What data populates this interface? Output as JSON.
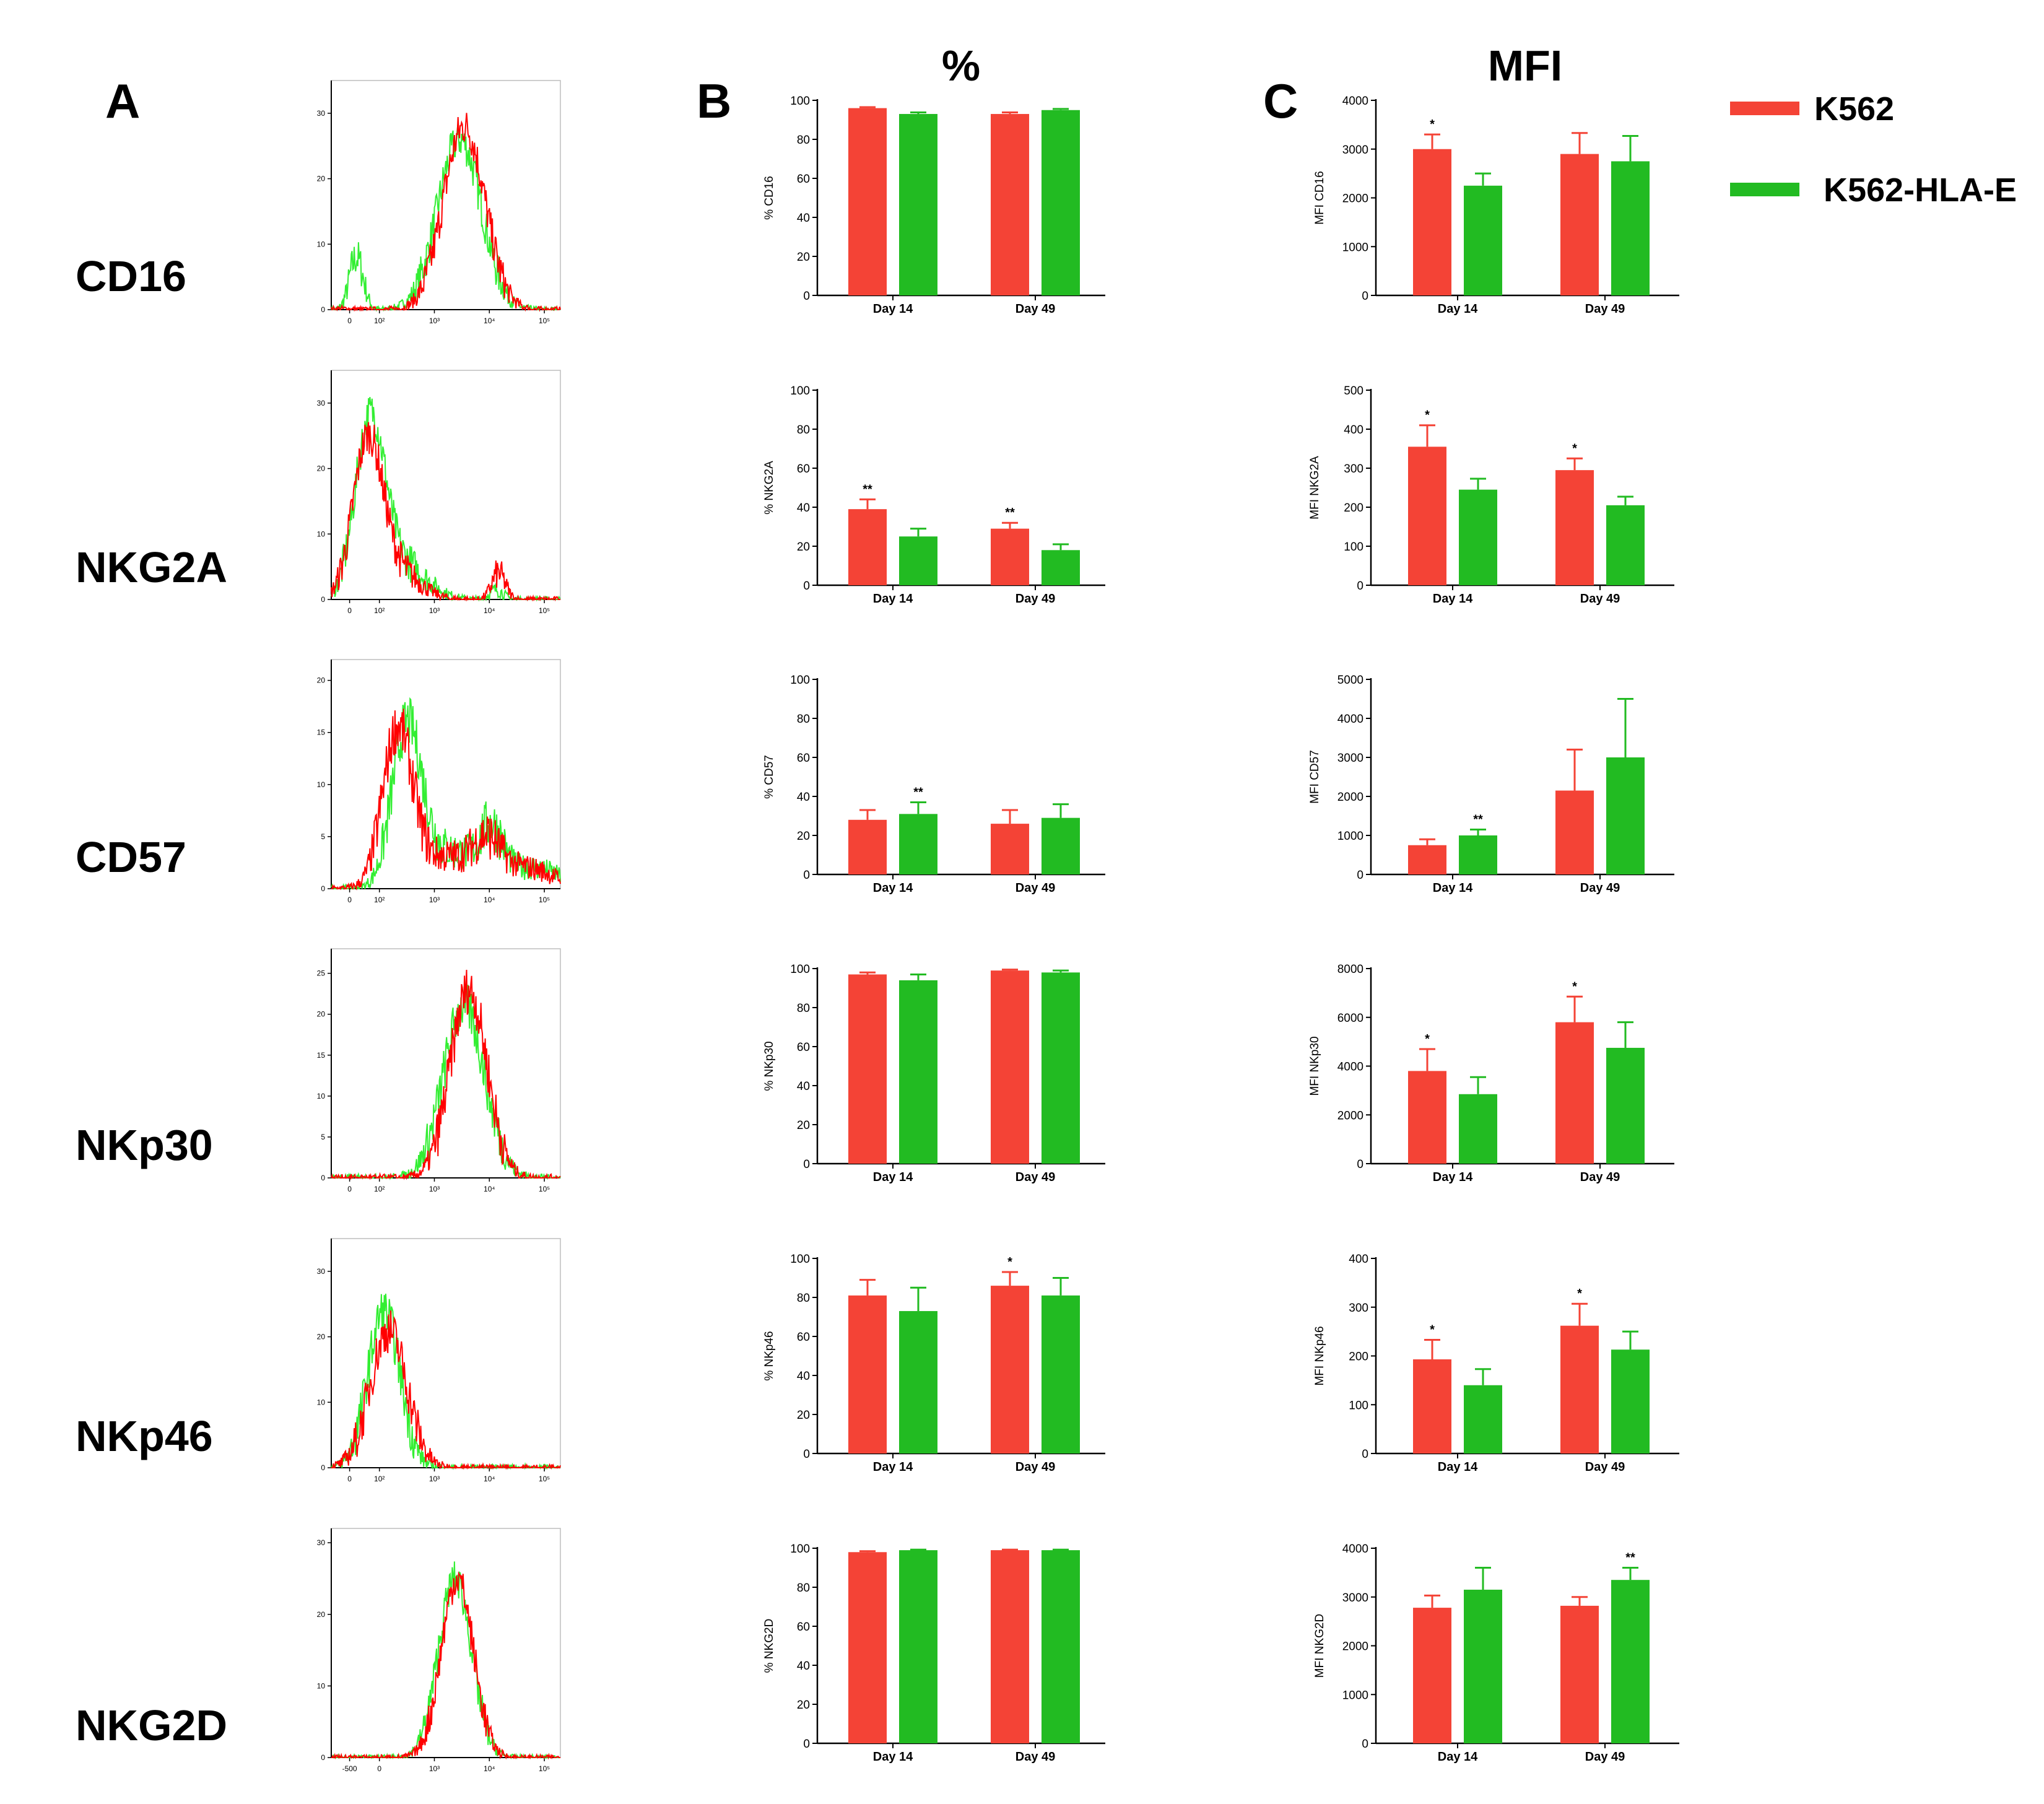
{
  "panel_letters": {
    "a": "A",
    "b": "B",
    "c": "C"
  },
  "column_titles": {
    "percent": "%",
    "mfi": "MFI"
  },
  "markers": [
    "CD16",
    "NKG2A",
    "CD57",
    "NKp30",
    "NKp46",
    "NKG2D"
  ],
  "legend": [
    {
      "label": "K562",
      "color": "#f44336"
    },
    {
      "label": "K562-HLA-E",
      "color": "#22bb22"
    }
  ],
  "colors": {
    "k562": "#f44336",
    "k562_hla_e": "#22bb22",
    "hist_red": "#ff0000",
    "hist_green": "#33ee33"
  },
  "chart_data": [
    {
      "id": "A-CD16",
      "type": "line",
      "ylim": [
        0,
        35
      ],
      "yticks": [
        "0",
        "10",
        "20",
        "30"
      ],
      "xticks": [
        "0",
        "10²",
        "10³",
        "10⁴",
        "10⁵"
      ],
      "series": [
        "red",
        "green"
      ]
    },
    {
      "id": "A-NKG2A",
      "type": "line",
      "ylim": [
        0,
        35
      ],
      "yticks": [
        "0",
        "10",
        "20",
        "30"
      ],
      "xticks": [
        "0",
        "10²",
        "10³",
        "10⁴",
        "10⁵"
      ],
      "series": [
        "red",
        "green"
      ]
    },
    {
      "id": "A-CD57",
      "type": "line",
      "ylim": [
        0,
        22
      ],
      "yticks": [
        "0",
        "5",
        "10",
        "15",
        "20"
      ],
      "xticks": [
        "0",
        "10²",
        "10³",
        "10⁴",
        "10⁵"
      ],
      "series": [
        "red",
        "green"
      ]
    },
    {
      "id": "A-NKp30",
      "type": "line",
      "ylim": [
        0,
        28
      ],
      "yticks": [
        "0",
        "5",
        "10",
        "15",
        "20",
        "25"
      ],
      "xticks": [
        "0",
        "10²",
        "10³",
        "10⁴",
        "10⁵"
      ],
      "series": [
        "red",
        "green"
      ]
    },
    {
      "id": "A-NKp46",
      "type": "line",
      "ylim": [
        0,
        35
      ],
      "yticks": [
        "0",
        "10",
        "20",
        "30"
      ],
      "xticks": [
        "0",
        "10²",
        "10³",
        "10⁴",
        "10⁵"
      ],
      "series": [
        "red",
        "green"
      ]
    },
    {
      "id": "A-NKG2D",
      "type": "line",
      "ylim": [
        0,
        32
      ],
      "yticks": [
        "0",
        "10",
        "20",
        "30"
      ],
      "xticks": [
        "-500",
        "0",
        "10³",
        "10⁴",
        "10⁵"
      ],
      "series": [
        "red",
        "green"
      ]
    },
    {
      "id": "B-CD16",
      "type": "bar",
      "ylabel": "% CD16",
      "ylim": [
        0,
        100
      ],
      "yticks": [
        0,
        20,
        40,
        60,
        80,
        100
      ],
      "categories": [
        "Day 14",
        "Day 49"
      ],
      "series": [
        {
          "name": "K562",
          "values": [
            96,
            93
          ],
          "errors": [
            0.5,
            0.8
          ],
          "sig": [
            "",
            ""
          ]
        },
        {
          "name": "K562-HLA-E",
          "values": [
            93,
            95
          ],
          "errors": [
            0.8,
            0.6
          ],
          "sig": [
            "",
            ""
          ]
        }
      ]
    },
    {
      "id": "B-NKG2A",
      "type": "bar",
      "ylabel": "% NKG2A",
      "ylim": [
        0,
        100
      ],
      "yticks": [
        0,
        20,
        40,
        60,
        80,
        100
      ],
      "categories": [
        "Day 14",
        "Day 49"
      ],
      "series": [
        {
          "name": "K562",
          "values": [
            39,
            29
          ],
          "errors": [
            5,
            3
          ],
          "sig": [
            "**",
            "**"
          ]
        },
        {
          "name": "K562-HLA-E",
          "values": [
            25,
            18
          ],
          "errors": [
            4,
            3
          ],
          "sig": [
            "",
            ""
          ]
        }
      ]
    },
    {
      "id": "B-CD57",
      "type": "bar",
      "ylabel": "% CD57",
      "ylim": [
        0,
        100
      ],
      "yticks": [
        0,
        20,
        40,
        60,
        80,
        100
      ],
      "categories": [
        "Day 14",
        "Day 49"
      ],
      "series": [
        {
          "name": "K562",
          "values": [
            28,
            26
          ],
          "errors": [
            5,
            7
          ],
          "sig": [
            "",
            ""
          ]
        },
        {
          "name": "K562-HLA-E",
          "values": [
            31,
            29
          ],
          "errors": [
            6,
            7
          ],
          "sig": [
            "**",
            ""
          ]
        }
      ]
    },
    {
      "id": "B-NKp30",
      "type": "bar",
      "ylabel": "% NKp30",
      "ylim": [
        0,
        100
      ],
      "yticks": [
        0,
        20,
        40,
        60,
        80,
        100
      ],
      "categories": [
        "Day 14",
        "Day 49"
      ],
      "series": [
        {
          "name": "K562",
          "values": [
            97,
            99
          ],
          "errors": [
            1,
            0.5
          ],
          "sig": [
            "",
            ""
          ]
        },
        {
          "name": "K562-HLA-E",
          "values": [
            94,
            98
          ],
          "errors": [
            3,
            1
          ],
          "sig": [
            "",
            ""
          ]
        }
      ]
    },
    {
      "id": "B-NKp46",
      "type": "bar",
      "ylabel": "% NKp46",
      "ylim": [
        0,
        100
      ],
      "yticks": [
        0,
        20,
        40,
        60,
        80,
        100
      ],
      "categories": [
        "Day 14",
        "Day 49"
      ],
      "series": [
        {
          "name": "K562",
          "values": [
            81,
            86
          ],
          "errors": [
            8,
            7
          ],
          "sig": [
            "",
            "*"
          ]
        },
        {
          "name": "K562-HLA-E",
          "values": [
            73,
            81
          ],
          "errors": [
            12,
            9
          ],
          "sig": [
            "",
            ""
          ]
        }
      ]
    },
    {
      "id": "B-NKG2D",
      "type": "bar",
      "ylabel": "% NKG2D",
      "ylim": [
        0,
        100
      ],
      "yticks": [
        0,
        20,
        40,
        60,
        80,
        100
      ],
      "categories": [
        "Day 14",
        "Day 49"
      ],
      "series": [
        {
          "name": "K562",
          "values": [
            98,
            99
          ],
          "errors": [
            0.5,
            0.3
          ],
          "sig": [
            "",
            ""
          ]
        },
        {
          "name": "K562-HLA-E",
          "values": [
            99,
            99
          ],
          "errors": [
            0.3,
            0.3
          ],
          "sig": [
            "",
            ""
          ]
        }
      ]
    },
    {
      "id": "C-CD16",
      "type": "bar",
      "ylabel": "MFI CD16",
      "ylim": [
        0,
        4000
      ],
      "yticks": [
        0,
        1000,
        2000,
        3000,
        4000
      ],
      "categories": [
        "Day 14",
        "Day 49"
      ],
      "series": [
        {
          "name": "K562",
          "values": [
            3000,
            2900
          ],
          "errors": [
            300,
            430
          ],
          "sig": [
            "*",
            ""
          ]
        },
        {
          "name": "K562-HLA-E",
          "values": [
            2250,
            2750
          ],
          "errors": [
            250,
            520
          ],
          "sig": [
            "",
            ""
          ]
        }
      ]
    },
    {
      "id": "C-NKG2A",
      "type": "bar",
      "ylabel": "MFI NKG2A",
      "ylim": [
        0,
        500
      ],
      "yticks": [
        0,
        100,
        200,
        300,
        400,
        500
      ],
      "categories": [
        "Day 14",
        "Day 49"
      ],
      "series": [
        {
          "name": "K562",
          "values": [
            355,
            295
          ],
          "errors": [
            55,
            30
          ],
          "sig": [
            "*",
            "*"
          ]
        },
        {
          "name": "K562-HLA-E",
          "values": [
            245,
            205
          ],
          "errors": [
            28,
            22
          ],
          "sig": [
            "",
            ""
          ]
        }
      ]
    },
    {
      "id": "C-CD57",
      "type": "bar",
      "ylabel": "MFI CD57",
      "ylim": [
        0,
        5000
      ],
      "yticks": [
        0,
        1000,
        2000,
        3000,
        4000,
        5000
      ],
      "categories": [
        "Day 14",
        "Day 49"
      ],
      "series": [
        {
          "name": "K562",
          "values": [
            750,
            2150
          ],
          "errors": [
            150,
            1050
          ],
          "sig": [
            "",
            ""
          ]
        },
        {
          "name": "K562-HLA-E",
          "values": [
            1000,
            3000
          ],
          "errors": [
            150,
            1500
          ],
          "sig": [
            "**",
            ""
          ]
        }
      ]
    },
    {
      "id": "C-NKp30",
      "type": "bar",
      "ylabel": "MFI NKp30",
      "ylim": [
        0,
        8000
      ],
      "yticks": [
        0,
        2000,
        4000,
        6000,
        8000
      ],
      "categories": [
        "Day 14",
        "Day 49"
      ],
      "series": [
        {
          "name": "K562",
          "values": [
            3800,
            5800
          ],
          "errors": [
            900,
            1050
          ],
          "sig": [
            "*",
            "*"
          ]
        },
        {
          "name": "K562-HLA-E",
          "values": [
            2850,
            4750
          ],
          "errors": [
            700,
            1050
          ],
          "sig": [
            "",
            ""
          ]
        }
      ]
    },
    {
      "id": "C-NKp46",
      "type": "bar",
      "ylabel": "MFI NKp46",
      "ylim": [
        0,
        400
      ],
      "yticks": [
        0,
        100,
        200,
        300,
        400
      ],
      "categories": [
        "Day 14",
        "Day 49"
      ],
      "series": [
        {
          "name": "K562",
          "values": [
            193,
            262
          ],
          "errors": [
            40,
            45
          ],
          "sig": [
            "*",
            "*"
          ]
        },
        {
          "name": "K562-HLA-E",
          "values": [
            140,
            213
          ],
          "errors": [
            33,
            37
          ],
          "sig": [
            "",
            ""
          ]
        }
      ]
    },
    {
      "id": "C-NKG2D",
      "type": "bar",
      "ylabel": "MFI NKG2D",
      "ylim": [
        0,
        4000
      ],
      "yticks": [
        0,
        1000,
        2000,
        3000,
        4000
      ],
      "categories": [
        "Day 14",
        "Day 49"
      ],
      "series": [
        {
          "name": "K562",
          "values": [
            2780,
            2820
          ],
          "errors": [
            250,
            180
          ],
          "sig": [
            "",
            ""
          ]
        },
        {
          "name": "K562-HLA-E",
          "values": [
            3150,
            3350
          ],
          "errors": [
            450,
            250
          ],
          "sig": [
            "",
            "**"
          ]
        }
      ]
    }
  ]
}
